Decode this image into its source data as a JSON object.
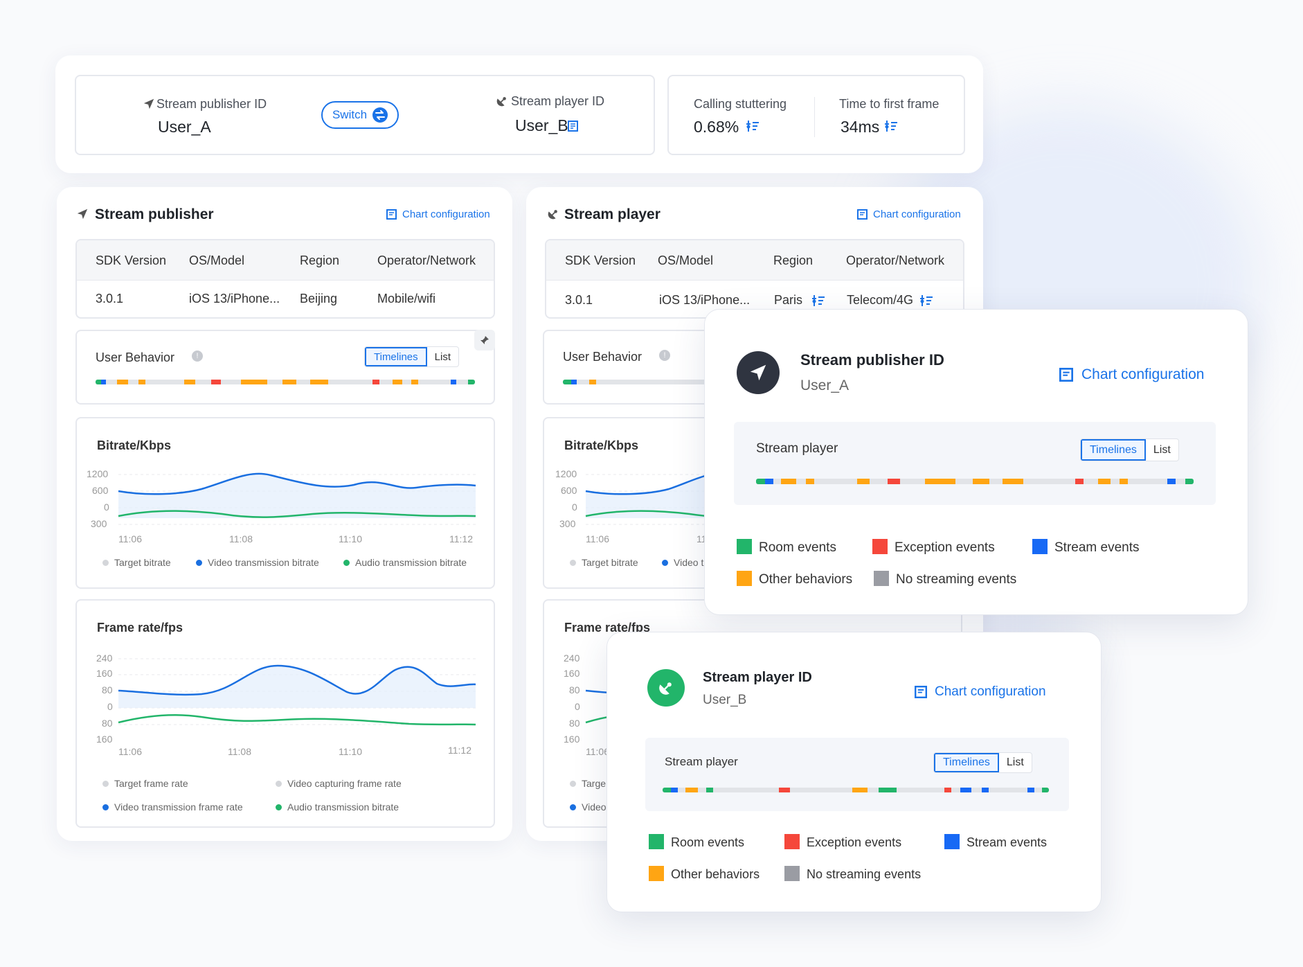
{
  "top": {
    "publisher_label": "Stream publisher ID",
    "publisher_value": "User_A",
    "switch_label": "Switch",
    "player_label": "Stream player ID",
    "player_value": "User_B",
    "stutter_label": "Calling stuttering",
    "stutter_value": "0.68%",
    "ttff_label": "Time to first frame",
    "ttff_value": "34ms"
  },
  "publisher_panel": {
    "title": "Stream publisher",
    "chart_config": "Chart configuration",
    "columns": [
      "SDK Version",
      "OS/Model",
      "Region",
      "Operator/Network"
    ],
    "row": [
      "3.0.1",
      "iOS 13/iPhone...",
      "Beijing",
      "Mobile/wifi"
    ],
    "user_behavior": "User Behavior",
    "tab_timelines": "Timelines",
    "tab_list": "List",
    "bitrate_title": "Bitrate/Kbps",
    "bitrate_yticks": [
      "1200",
      "600",
      "0",
      "300"
    ],
    "bitrate_xticks": [
      "11:06",
      "11:08",
      "11:10",
      "11:12"
    ],
    "bitrate_legend": [
      "Target bitrate",
      "Video transmission bitrate",
      "Audio transmission bitrate"
    ],
    "fps_title": "Frame rate/fps",
    "fps_yticks": [
      "240",
      "160",
      "80",
      "0",
      "80",
      "160"
    ],
    "fps_xticks": [
      "11:06",
      "11:08",
      "11:10",
      "11:12"
    ],
    "fps_legend": [
      "Target frame rate",
      "Video capturing frame rate",
      "Video transmission frame rate",
      "Audio transmission bitrate"
    ]
  },
  "player_panel": {
    "title": "Stream player",
    "chart_config": "Chart configuration",
    "columns": [
      "SDK Version",
      "OS/Model",
      "Region",
      "Operator/Network"
    ],
    "row": [
      "3.0.1",
      "iOS 13/iPhone...",
      "Paris",
      "Telecom/4G"
    ],
    "user_behavior": "User Behavior",
    "bitrate_title": "Bitrate/Kbps",
    "bitrate_yticks": [
      "1200",
      "600",
      "0",
      "300"
    ],
    "bitrate_xticks": [
      "11:06",
      "11"
    ],
    "bitrate_legend": [
      "Target bitrate",
      "Video t"
    ],
    "fps_title": "Frame rate/fps",
    "fps_yticks": [
      "240",
      "160",
      "80",
      "0",
      "80",
      "160"
    ],
    "fps_xticks": [
      "11:06"
    ],
    "fps_legend": [
      "Targe",
      "Video"
    ]
  },
  "popup_publisher": {
    "title": "Stream publisher ID",
    "user": "User_A",
    "chart_config": "Chart configuration",
    "section_title": "Stream player",
    "tab_timelines": "Timelines",
    "tab_list": "List"
  },
  "popup_player": {
    "title": "Stream player ID",
    "user": "User_B",
    "chart_config": "Chart configuration",
    "section_title": "Stream player",
    "tab_timelines": "Timelines",
    "tab_list": "List"
  },
  "event_legend": {
    "room": "Room events",
    "exception": "Exception events",
    "stream": "Stream events",
    "other": "Other behaviors",
    "none": "No streaming events"
  },
  "colors": {
    "room": "#22b56a",
    "exception": "#f5473b",
    "stream": "#1769f5",
    "other": "#ffa513",
    "none": "#9a9ca3",
    "accent": "#1a73e8"
  },
  "icons": {
    "publisher": "send-arrow-icon",
    "player": "satellite-dish-icon",
    "switch": "swap-icon",
    "filter": "filter-icon",
    "chart_config": "chart-config-icon",
    "info": "info-icon",
    "pin": "pin-icon"
  }
}
